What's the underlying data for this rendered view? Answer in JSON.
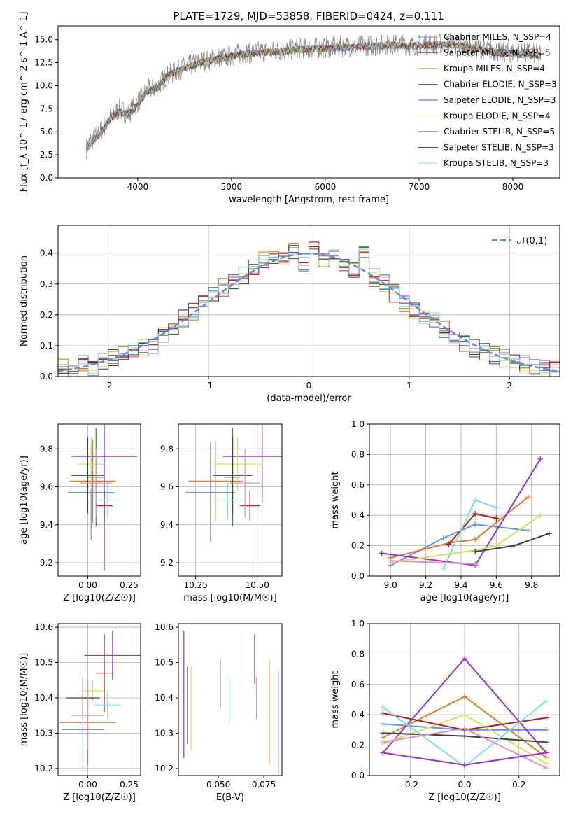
{
  "figure": {
    "title": "PLATE=1729, MJD=53858, FIBERID=0424, z=0.111"
  },
  "chart_data": [
    {
      "id": "spectrum",
      "type": "line",
      "xlabel": "wavelength [Angstrom, rest frame]",
      "ylabel": "Flux [f_λ 10^-17 erg cm^-2 s^-1 A^-1]",
      "xlim": [
        3150,
        8500
      ],
      "ylim": [
        0,
        16.5
      ],
      "xticks": [
        4000,
        5000,
        6000,
        7000,
        8000
      ],
      "yticks": [
        0.0,
        2.5,
        5.0,
        7.5,
        10.0,
        12.5,
        15.0
      ],
      "grid": false,
      "legend": "right",
      "observed": {
        "name": "data",
        "color": "#808080",
        "x": [
          3450,
          3500,
          3600,
          3700,
          3800,
          3900,
          4000,
          4100,
          4200,
          4300,
          4400,
          4500,
          4700,
          4900,
          5100,
          5300,
          5500,
          5700,
          5900,
          6100,
          6300,
          6500,
          6700,
          6900,
          7100,
          7300,
          7500,
          7700,
          7900,
          8100,
          8300
        ],
        "y": [
          3.2,
          4.0,
          5.0,
          6.5,
          7.4,
          7.0,
          8.2,
          9.5,
          9.8,
          11.0,
          11.6,
          12.0,
          12.7,
          13.1,
          13.5,
          13.7,
          13.8,
          14.0,
          14.1,
          14.2,
          14.3,
          14.4,
          14.5,
          14.4,
          14.5,
          14.6,
          14.3,
          13.9,
          13.6,
          13.6,
          13.4
        ]
      },
      "series": [
        {
          "name": "Chabrier MILES, N_SSP=4",
          "color": "#6495ed"
        },
        {
          "name": "Salpeter MILES, N_SSP=5",
          "color": "#e0442a"
        },
        {
          "name": "Kroupa MILES, N_SSP=4",
          "color": "#b8860b"
        },
        {
          "name": "Chabrier ELODIE, N_SSP=3",
          "color": "#2e8b57"
        },
        {
          "name": "Salpeter ELODIE, N_SSP=3",
          "color": "#9932cc"
        },
        {
          "name": "Kroupa ELODIE, N_SSP=4",
          "color": "#d4e157"
        },
        {
          "name": "Chabrier STELIB, N_SSP=5",
          "color": "#404040"
        },
        {
          "name": "Salpeter STELIB, N_SSP=3",
          "color": "#b22222"
        },
        {
          "name": "Kroupa STELIB, N_SSP=3",
          "color": "#7fdbe8"
        }
      ],
      "model": {
        "x": [
          3450,
          3500,
          3600,
          3700,
          3800,
          3900,
          4000,
          4100,
          4200,
          4300,
          4400,
          4500,
          4700,
          4900,
          5100,
          5300,
          5500,
          5700,
          5900,
          6100,
          6300,
          6500,
          6700,
          6900,
          7100,
          7300,
          7500,
          7700,
          7900,
          8100,
          8300
        ],
        "y": [
          3.0,
          3.8,
          4.8,
          6.3,
          7.2,
          6.8,
          8.0,
          9.4,
          9.7,
          10.9,
          11.5,
          11.9,
          12.6,
          13.0,
          13.4,
          13.6,
          13.7,
          13.9,
          14.0,
          14.1,
          14.2,
          14.3,
          14.4,
          14.3,
          14.4,
          14.5,
          14.2,
          13.8,
          13.5,
          13.5,
          13.3
        ]
      }
    },
    {
      "id": "residuals",
      "type": "bar",
      "xlabel": "(data-model)/error",
      "ylabel": "Normed distribution",
      "xlim": [
        -2.5,
        2.5
      ],
      "ylim": [
        0,
        0.49
      ],
      "xticks": [
        -2,
        -1,
        0,
        1,
        2
      ],
      "yticks": [
        0.0,
        0.1,
        0.2,
        0.3,
        0.4
      ],
      "grid": true,
      "legend": "top-right",
      "reference": {
        "name": "𝒩(0,1)",
        "mu": 0,
        "sigma": 1,
        "color": "#5b8ed6"
      },
      "bin_edges": [
        -2.5,
        -2.4,
        -2.3,
        -2.2,
        -2.1,
        -2.0,
        -1.9,
        -1.8,
        -1.7,
        -1.6,
        -1.5,
        -1.4,
        -1.3,
        -1.2,
        -1.1,
        -1.0,
        -0.9,
        -0.8,
        -0.7,
        -0.6,
        -0.5,
        -0.4,
        -0.3,
        -0.2,
        -0.1,
        0.0,
        0.1,
        0.2,
        0.3,
        0.4,
        0.5,
        0.6,
        0.7,
        0.8,
        0.9,
        1.0,
        1.1,
        1.2,
        1.3,
        1.4,
        1.5,
        1.6,
        1.7,
        1.8,
        1.9,
        2.0,
        2.1,
        2.2,
        2.3,
        2.4,
        2.5
      ],
      "hist_values": [
        0.03,
        0.02,
        0.04,
        0.03,
        0.05,
        0.06,
        0.07,
        0.08,
        0.09,
        0.1,
        0.13,
        0.15,
        0.19,
        0.21,
        0.24,
        0.27,
        0.29,
        0.31,
        0.33,
        0.36,
        0.38,
        0.39,
        0.38,
        0.41,
        0.37,
        0.42,
        0.38,
        0.39,
        0.36,
        0.35,
        0.4,
        0.32,
        0.3,
        0.27,
        0.24,
        0.21,
        0.2,
        0.18,
        0.15,
        0.13,
        0.11,
        0.09,
        0.08,
        0.07,
        0.06,
        0.05,
        0.04,
        0.03,
        0.03,
        0.02
      ],
      "hist_colors": [
        "#6495ed",
        "#e0442a",
        "#b8860b",
        "#2e8b57",
        "#9932cc",
        "#d4e157",
        "#404040",
        "#b22222",
        "#7fdbe8"
      ]
    },
    {
      "id": "z-age",
      "type": "scatter",
      "xlabel": "Z [log10(Z/Z☉)]",
      "ylabel": "age [log10(age/yr)]",
      "xlim": [
        -0.18,
        0.32
      ],
      "ylim": [
        9.13,
        9.93
      ],
      "xticks": [
        0.0,
        0.25
      ],
      "yticks": [
        9.2,
        9.4,
        9.6,
        9.8
      ],
      "grid": true,
      "points": [
        {
          "x": 0.02,
          "xerr": 0.14,
          "y": 9.57,
          "yerr": 0.25,
          "color": "#6495ed"
        },
        {
          "x": 0.03,
          "xerr": 0.14,
          "y": 9.63,
          "yerr": 0.22,
          "color": "#e07b2a"
        },
        {
          "x": 0.05,
          "xerr": 0.05,
          "y": 9.65,
          "yerr": 0.26,
          "color": "#2e8b57"
        },
        {
          "x": 0.1,
          "xerr": 0.2,
          "y": 9.76,
          "yerr": 0.6,
          "color": "#9932cc"
        },
        {
          "x": 0.02,
          "xerr": 0.08,
          "y": 9.72,
          "yerr": 0.14,
          "color": "#d4e157"
        },
        {
          "x": 0.0,
          "xerr": 0.1,
          "y": 9.66,
          "yerr": 0.2,
          "color": "#404040"
        },
        {
          "x": 0.1,
          "xerr": 0.05,
          "y": 9.5,
          "yerr": 0.08,
          "color": "#b22222"
        },
        {
          "x": 0.12,
          "xerr": 0.08,
          "y": 9.53,
          "yerr": 0.1,
          "color": "#7fdbe8"
        },
        {
          "x": 0.05,
          "xerr": 0.1,
          "y": 9.62,
          "yerr": 0.18,
          "color": "#e68fc0"
        }
      ]
    },
    {
      "id": "mass-age",
      "type": "scatter",
      "xlabel": "mass [log10(M/M☉)]",
      "ylabel": "",
      "xlim": [
        10.18,
        10.6
      ],
      "ylim": [
        9.13,
        9.93
      ],
      "xticks": [
        10.25,
        10.5
      ],
      "yticks": [
        9.2,
        9.4,
        9.6,
        9.8
      ],
      "grid": true,
      "points": [
        {
          "x": 10.31,
          "xerr": 0.1,
          "y": 9.57,
          "yerr": 0.26,
          "color": "#6495ed"
        },
        {
          "x": 10.33,
          "xerr": 0.11,
          "y": 9.63,
          "yerr": 0.21,
          "color": "#e07b2a"
        },
        {
          "x": 10.4,
          "xerr": 0.03,
          "y": 9.65,
          "yerr": 0.26,
          "color": "#2e8b57"
        },
        {
          "x": 10.52,
          "xerr": 0.16,
          "y": 9.76,
          "yerr": 0.24,
          "color": "#9932cc"
        },
        {
          "x": 10.42,
          "xerr": 0.1,
          "y": 9.72,
          "yerr": 0.14,
          "color": "#d4e157"
        },
        {
          "x": 10.4,
          "xerr": 0.08,
          "y": 9.66,
          "yerr": 0.2,
          "color": "#404040"
        },
        {
          "x": 10.47,
          "xerr": 0.04,
          "y": 9.5,
          "yerr": 0.08,
          "color": "#b22222"
        },
        {
          "x": 10.38,
          "xerr": 0.06,
          "y": 9.53,
          "yerr": 0.1,
          "color": "#7fdbe8"
        },
        {
          "x": 10.45,
          "xerr": 0.06,
          "y": 9.62,
          "yerr": 0.18,
          "color": "#e68fc0"
        }
      ]
    },
    {
      "id": "age-weight",
      "type": "line",
      "xlabel": "age [log10(age/yr)]",
      "ylabel": "mass weight",
      "xlim": [
        8.88,
        9.96
      ],
      "ylim": [
        0,
        1.0
      ],
      "xticks": [
        9.0,
        9.2,
        9.4,
        9.6,
        9.8
      ],
      "yticks": [
        0.0,
        0.2,
        0.4,
        0.6,
        0.8,
        1.0
      ],
      "grid": true,
      "series": [
        {
          "color": "#6495ed",
          "x": [
            9.0,
            9.3,
            9.48,
            9.78
          ],
          "y": [
            0.07,
            0.25,
            0.34,
            0.3
          ]
        },
        {
          "color": "#e07b2a",
          "x": [
            9.0,
            9.34,
            9.48,
            9.78
          ],
          "y": [
            0.12,
            0.22,
            0.24,
            0.52
          ]
        },
        {
          "color": "#9932cc",
          "x": [
            8.95,
            9.48,
            9.85
          ],
          "y": [
            0.15,
            0.07,
            0.77
          ]
        },
        {
          "color": "#d4e157",
          "x": [
            9.0,
            9.48,
            9.6,
            9.85
          ],
          "y": [
            0.09,
            0.17,
            0.2,
            0.4
          ]
        },
        {
          "color": "#404040",
          "x": [
            9.48,
            9.7,
            9.9
          ],
          "y": [
            0.16,
            0.2,
            0.28
          ]
        },
        {
          "color": "#b22222",
          "x": [
            9.33,
            9.48,
            9.6
          ],
          "y": [
            0.21,
            0.41,
            0.38
          ]
        },
        {
          "color": "#7fdbe8",
          "x": [
            9.3,
            9.48,
            9.6
          ],
          "y": [
            0.05,
            0.5,
            0.45
          ]
        },
        {
          "color": "#e68fc0",
          "x": [
            9.0,
            9.48
          ],
          "y": [
            0.1,
            0.08
          ]
        }
      ]
    },
    {
      "id": "z-mass",
      "type": "scatter",
      "xlabel": "Z [log10(Z/Z☉)]",
      "ylabel": "mass [log10(M/M☉)]",
      "xlim": [
        -0.18,
        0.32
      ],
      "ylim": [
        10.18,
        10.61
      ],
      "xticks": [
        0.0,
        0.25
      ],
      "yticks": [
        10.2,
        10.3,
        10.4,
        10.5,
        10.6
      ],
      "grid": true,
      "points": [
        {
          "x": -0.03,
          "xerr": 0.13,
          "y": 10.31,
          "yerr": 0.12,
          "color": "#6495ed"
        },
        {
          "x": 0.0,
          "xerr": 0.17,
          "y": 10.33,
          "yerr": 0.12,
          "color": "#e07b2a"
        },
        {
          "x": 0.0,
          "xerr": 0.03,
          "y": 10.4,
          "yerr": 0.03,
          "color": "#2e8b57"
        },
        {
          "x": 0.15,
          "xerr": 0.17,
          "y": 10.52,
          "yerr": 0.07,
          "color": "#9932cc"
        },
        {
          "x": 0.03,
          "xerr": 0.07,
          "y": 10.42,
          "yerr": 0.03,
          "color": "#d4e157"
        },
        {
          "x": -0.03,
          "xerr": 0.1,
          "y": 10.4,
          "yerr": 0.06,
          "color": "#404040"
        },
        {
          "x": 0.1,
          "xerr": 0.05,
          "y": 10.47,
          "yerr": 0.11,
          "color": "#b22222"
        },
        {
          "x": 0.12,
          "xerr": 0.08,
          "y": 10.38,
          "yerr": 0.04,
          "color": "#7fdbe8"
        },
        {
          "x": 0.0,
          "xerr": 0.1,
          "y": 10.35,
          "yerr": 0.1,
          "color": "#e68fc0"
        }
      ]
    },
    {
      "id": "ebv-mass",
      "type": "scatter",
      "xlabel": "E(B-V)",
      "ylabel": "",
      "xlim": [
        0.028,
        0.085
      ],
      "ylim": [
        10.18,
        10.61
      ],
      "xticks": [
        0.05,
        0.075
      ],
      "yticks": [
        10.2,
        10.3,
        10.4,
        10.5,
        10.6
      ],
      "grid": false,
      "points": [
        {
          "x": 0.031,
          "y": 10.41,
          "yerr": 0.18,
          "color": "#9932cc"
        },
        {
          "x": 0.033,
          "y": 10.38,
          "yerr": 0.11,
          "color": "#404040"
        },
        {
          "x": 0.035,
          "y": 10.37,
          "yerr": 0.12,
          "color": "#d4e157"
        },
        {
          "x": 0.051,
          "y": 10.44,
          "yerr": 0.07,
          "color": "#404040"
        },
        {
          "x": 0.056,
          "y": 10.39,
          "yerr": 0.07,
          "color": "#7fdbe8"
        },
        {
          "x": 0.07,
          "y": 10.51,
          "yerr": 0.07,
          "color": "#b22222"
        },
        {
          "x": 0.071,
          "y": 10.4,
          "yerr": 0.06,
          "color": "#e68fc0"
        },
        {
          "x": 0.078,
          "y": 10.36,
          "yerr": 0.15,
          "color": "#e07b2a"
        },
        {
          "x": 0.083,
          "y": 10.33,
          "yerr": 0.15,
          "color": "#6495ed"
        }
      ]
    },
    {
      "id": "z-weight",
      "type": "line",
      "xlabel": "Z [log10(Z/Z☉)]",
      "ylabel": "mass weight",
      "xlim": [
        -0.35,
        0.35
      ],
      "ylim": [
        0,
        1.0
      ],
      "xticks": [
        -0.2,
        0.0,
        0.2
      ],
      "yticks": [
        0.0,
        0.2,
        0.4,
        0.6,
        0.8,
        1.0
      ],
      "grid": true,
      "series": [
        {
          "color": "#6495ed",
          "x": [
            -0.3,
            0.0,
            0.3
          ],
          "y": [
            0.34,
            0.3,
            0.3
          ]
        },
        {
          "color": "#e07b2a",
          "x": [
            -0.3,
            0.0,
            0.3
          ],
          "y": [
            0.25,
            0.52,
            0.12
          ]
        },
        {
          "color": "#9932cc",
          "x": [
            -0.3,
            0.0,
            0.3
          ],
          "y": [
            0.15,
            0.77,
            0.15
          ]
        },
        {
          "color": "#d4e157",
          "x": [
            -0.3,
            0.0,
            0.3
          ],
          "y": [
            0.21,
            0.4,
            0.08
          ]
        },
        {
          "color": "#404040",
          "x": [
            -0.3,
            0.0,
            0.3
          ],
          "y": [
            0.28,
            0.26,
            0.22
          ]
        },
        {
          "color": "#b22222",
          "x": [
            -0.3,
            0.0,
            0.3
          ],
          "y": [
            0.41,
            0.3,
            0.38
          ]
        },
        {
          "color": "#7fdbe8",
          "x": [
            -0.3,
            0.0,
            0.3
          ],
          "y": [
            0.45,
            0.06,
            0.49
          ]
        },
        {
          "color": "#e68fc0",
          "x": [
            -0.3,
            0.0,
            0.3
          ],
          "y": [
            0.22,
            0.31,
            0.05
          ]
        },
        {
          "color": "#9932cc",
          "x": [
            -0.3,
            0.0,
            0.3
          ],
          "y": [
            0.15,
            0.07,
            0.15
          ]
        }
      ]
    }
  ]
}
